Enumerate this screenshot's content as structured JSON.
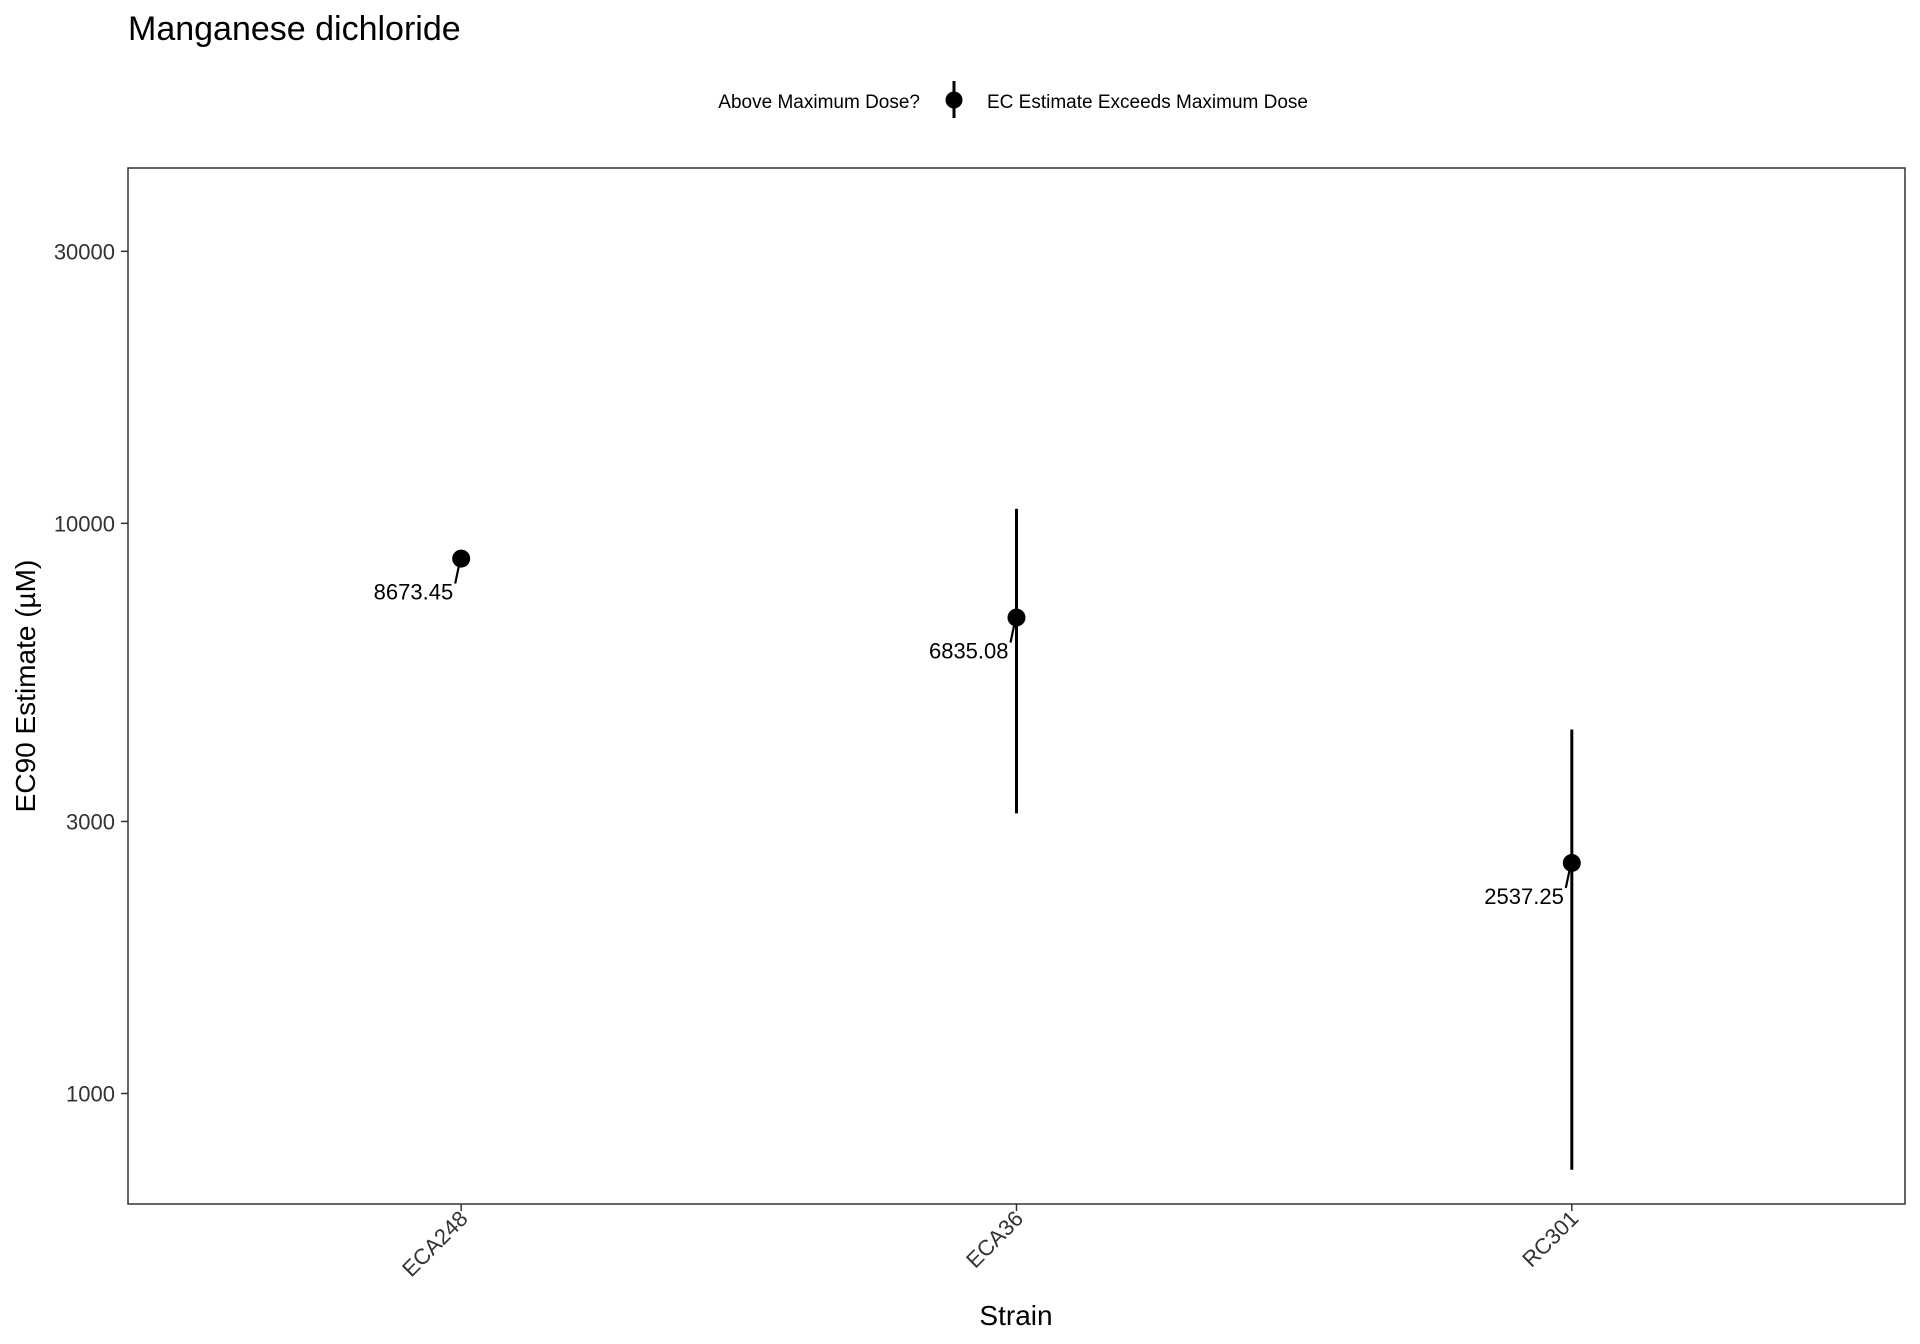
{
  "chart_data": {
    "type": "scatter",
    "title": "Manganese dichloride",
    "xlabel": "Strain",
    "ylabel": "EC90 Estimate (µM)",
    "y_scale": "log10",
    "ylim": [
      640,
      42000
    ],
    "y_ticks": [
      1000,
      3000,
      10000,
      30000
    ],
    "y_tick_labels": [
      "1000",
      "3000",
      "10000",
      "30000"
    ],
    "categories": [
      "ECA248",
      "ECA36",
      "RC301"
    ],
    "points": [
      {
        "strain": "ECA248",
        "estimate": 8673.45,
        "lower": null,
        "upper": null,
        "label": "8673.45"
      },
      {
        "strain": "ECA36",
        "estimate": 6835.08,
        "lower": 3100,
        "upper": 10600,
        "label": "6835.08"
      },
      {
        "strain": "RC301",
        "estimate": 2537.25,
        "lower": 735,
        "upper": 4350,
        "label": "2537.25"
      }
    ],
    "legend": {
      "title": "Above Maximum Dose?",
      "entries": [
        "EC Estimate Exceeds Maximum Dose"
      ],
      "position": "top"
    },
    "grid": false,
    "colors": {
      "marker": "#000000",
      "panel_border": "#333333",
      "tick_text": "#333333"
    }
  }
}
